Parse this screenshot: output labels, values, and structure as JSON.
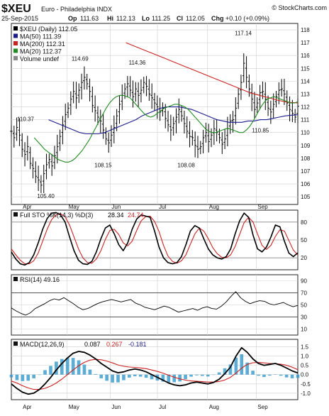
{
  "header": {
    "symbol": "$XEU",
    "name": "Euro - Philadelphia INDX",
    "watermark": "© StockCharts.com",
    "date": "25-Sep-2015",
    "quote": {
      "op_label": "Op",
      "op": "111.63",
      "hi_label": "Hi",
      "hi": "112.13",
      "lo_label": "Lo",
      "lo": "111.25",
      "cl_label": "Cl",
      "cl": "112.05",
      "chg_label": "Chg",
      "chg": "+0.10 (+0.09%)"
    }
  },
  "colors": {
    "price_bar": "#000000",
    "ma50": "#1a1a8c",
    "ma200": "#cc2222",
    "ma20": "#228b22",
    "grid": "#cfcfcf",
    "sto_k": "#000000",
    "sto_d": "#cc2222",
    "rsi": "#000000",
    "macd": "#000000",
    "macd_signal": "#cc2222",
    "macd_hist": "#3399cc",
    "label_neg": "#1a1a8c",
    "label_pos": "#008800"
  },
  "chart_data": {
    "type": "line",
    "months": [
      "Apr",
      "May",
      "Jun",
      "Jul",
      "Aug",
      "Sep"
    ],
    "price_panel": {
      "legend": [
        {
          "label": "$XEU (Daily) 112.05",
          "color": "#000000"
        },
        {
          "label": "MA(50) 111.39",
          "color": "#1a1a8c"
        },
        {
          "label": "MA(200) 112.31",
          "color": "#cc2222"
        },
        {
          "label": "MA(20) 112.37",
          "color": "#228b22"
        },
        {
          "label": "Volume undef",
          "color": "#888888"
        }
      ],
      "ylim": [
        104.4,
        118.5
      ],
      "yticks": [
        105,
        106,
        107,
        108,
        109,
        110,
        111,
        112,
        113,
        114,
        115,
        116,
        117,
        118
      ],
      "close": [
        110.1,
        109.6,
        110.4,
        109.8,
        108.7,
        108.3,
        108.9,
        107.6,
        107.2,
        106.6,
        106.3,
        105.9,
        106.8,
        107.5,
        107.9,
        107.4,
        108.2,
        108.9,
        109.7,
        110.6,
        111.4,
        111.9,
        112.6,
        113.2,
        112.7,
        113.3,
        113.9,
        114.3,
        113.8,
        113.2,
        112.1,
        111.7,
        111.2,
        110.9,
        110.2,
        109.5,
        109.2,
        109.8,
        110.4,
        111.3,
        112.2,
        112.9,
        113.4,
        113.8,
        113.3,
        112.8,
        113.4,
        112.9,
        113.3,
        113.9,
        113.6,
        113.0,
        112.7,
        112.3,
        112.0,
        111.6,
        111.9,
        111.1,
        110.6,
        110.2,
        110.7,
        111.2,
        111.8,
        111.3,
        110.7,
        110.1,
        109.7,
        109.6,
        109.0,
        108.7,
        108.9,
        109.6,
        110.0,
        109.3,
        109.8,
        110.3,
        110.0,
        109.6,
        109.1,
        109.5,
        110.3,
        110.9,
        111.0,
        111.9,
        113.0,
        113.9,
        115.4,
        114.3,
        113.4,
        112.6,
        111.8,
        112.3,
        113.1,
        113.2,
        112.6,
        111.9,
        111.6,
        112.2,
        112.8,
        113.3,
        113.4,
        113.0,
        112.3,
        111.8,
        111.5,
        111.2,
        112.05
      ],
      "ma20": [
        109.6,
        109.3,
        109.0,
        108.7,
        108.5,
        108.3,
        108.1,
        107.9,
        107.8,
        107.7,
        107.7,
        107.8,
        108.0,
        108.3,
        108.6,
        109.0,
        109.4,
        109.9,
        110.4,
        110.9,
        111.4,
        111.9,
        112.3,
        112.6,
        112.8,
        112.9,
        112.9,
        112.8,
        112.7,
        112.4,
        112.1,
        111.8,
        111.5,
        111.3,
        111.2,
        111.3,
        111.5,
        111.7,
        111.9,
        112.0,
        112.1,
        112.2,
        112.2,
        112.1,
        112.0,
        111.8,
        111.5,
        111.2,
        110.9,
        110.6,
        110.3,
        110.1,
        110.0,
        110.0,
        110.1,
        110.2,
        110.3,
        110.3,
        110.2,
        110.1,
        110.0,
        110.0,
        110.2,
        110.5,
        110.9,
        111.4,
        111.9,
        112.3,
        112.6,
        112.7,
        112.8,
        112.7,
        112.6,
        112.5,
        112.4,
        112.3,
        112.3,
        112.4
      ],
      "ma50": [
        111.0,
        110.8,
        110.6,
        110.4,
        110.2,
        110.0,
        109.9,
        109.9,
        109.9,
        110.0,
        110.2,
        110.4,
        110.6,
        110.8,
        111.0,
        111.3,
        111.5,
        111.7,
        111.9,
        112.0,
        112.0,
        112.0,
        111.9,
        111.8,
        111.6,
        111.4,
        111.2,
        111.0,
        110.9,
        110.8,
        110.8,
        110.8,
        110.9,
        110.9,
        111.0,
        111.0,
        111.1,
        111.2,
        111.3,
        111.35,
        111.39
      ],
      "ma200": [
        117.0,
        116.7,
        116.4,
        116.1,
        115.8,
        115.5,
        115.2,
        114.9,
        114.6,
        114.3,
        114.0,
        113.7,
        113.4,
        113.1,
        112.9,
        112.7,
        112.5,
        112.35,
        112.31
      ]
    },
    "sto_panel": {
      "legend": [
        {
          "label": "Full STO %K(14,3) %D(3)",
          "color": "#000000"
        },
        {
          "label": "28.34",
          "color": "#000000"
        },
        {
          "label": "24.74",
          "color": "#cc2222"
        }
      ],
      "ylim": [
        0,
        100
      ],
      "yticks": [
        20,
        50,
        80
      ],
      "k": [
        30,
        18,
        10,
        8,
        12,
        25,
        45,
        68,
        86,
        95,
        96,
        92,
        80,
        55,
        32,
        16,
        10,
        9,
        14,
        30,
        52,
        70,
        75,
        60,
        42,
        32,
        45,
        68,
        85,
        92,
        90,
        88,
        65,
        38,
        20,
        12,
        10,
        12,
        22,
        42,
        65,
        74,
        70,
        52,
        35,
        25,
        20,
        18,
        22,
        35,
        60,
        82,
        95,
        88,
        58,
        35,
        30,
        38,
        55,
        75,
        72,
        48,
        28,
        22,
        28.34
      ],
      "d": [
        35,
        25,
        16,
        10,
        10,
        15,
        28,
        48,
        68,
        84,
        92,
        94,
        89,
        75,
        55,
        35,
        20,
        12,
        11,
        18,
        32,
        51,
        66,
        68,
        59,
        45,
        40,
        48,
        66,
        82,
        89,
        90,
        81,
        64,
        41,
        23,
        14,
        11,
        15,
        25,
        43,
        60,
        70,
        65,
        52,
        37,
        27,
        21,
        20,
        25,
        39,
        59,
        79,
        88,
        80,
        60,
        41,
        34,
        41,
        56,
        67,
        65,
        49,
        33,
        24.74
      ]
    },
    "rsi_panel": {
      "legend": [
        {
          "label": "RSI(14) 49.16",
          "color": "#000000"
        }
      ],
      "ylim": [
        0,
        100
      ],
      "yticks": [
        10,
        30,
        50,
        70,
        90
      ],
      "values": [
        45,
        40,
        36,
        33,
        37,
        44,
        48,
        52,
        57,
        60,
        58,
        62,
        57,
        52,
        46,
        42,
        44,
        48,
        52,
        55,
        57,
        59,
        57,
        55,
        57,
        59,
        53,
        50,
        46,
        44,
        42,
        45,
        48,
        46,
        42,
        38,
        40,
        42,
        44,
        41,
        45,
        47,
        44,
        43,
        48,
        55,
        64,
        72,
        62,
        56,
        52,
        55,
        57,
        56,
        52,
        50,
        52,
        54,
        50,
        47,
        49.16
      ]
    },
    "macd_panel": {
      "legend": [
        {
          "label": "MACD(12,26,9)",
          "color": "#000000"
        },
        {
          "label": "0.087",
          "color": "#000000"
        },
        {
          "label": "0.267",
          "color": "#cc2222"
        },
        {
          "label": "-0.181",
          "color": "#3399cc"
        }
      ],
      "ylim": [
        -1.35,
        1.9
      ],
      "yticks": [
        -1.0,
        -0.5,
        0.0,
        0.5,
        1.0,
        1.5
      ],
      "macd": [
        -0.5,
        -0.75,
        -0.95,
        -1.05,
        -1.0,
        -0.8,
        -0.5,
        -0.15,
        0.25,
        0.6,
        0.9,
        1.15,
        1.25,
        1.2,
        1.05,
        0.85,
        0.6,
        0.4,
        0.2,
        0.1,
        0.15,
        0.25,
        0.3,
        0.25,
        0.15,
        0.0,
        -0.15,
        -0.3,
        -0.45,
        -0.55,
        -0.6,
        -0.55,
        -0.45,
        -0.4,
        -0.45,
        -0.5,
        -0.42,
        -0.25,
        0.05,
        0.4,
        1.0,
        1.45,
        1.2,
        0.85,
        0.6,
        0.5,
        0.55,
        0.6,
        0.5,
        0.35,
        0.2,
        0.087
      ],
      "signal": [
        -0.35,
        -0.45,
        -0.6,
        -0.72,
        -0.8,
        -0.8,
        -0.74,
        -0.62,
        -0.45,
        -0.24,
        0.0,
        0.25,
        0.48,
        0.66,
        0.78,
        0.82,
        0.8,
        0.73,
        0.63,
        0.52,
        0.45,
        0.41,
        0.39,
        0.36,
        0.32,
        0.25,
        0.17,
        0.08,
        -0.03,
        -0.14,
        -0.23,
        -0.3,
        -0.34,
        -0.36,
        -0.38,
        -0.4,
        -0.4,
        -0.37,
        -0.29,
        -0.15,
        0.08,
        0.35,
        0.55,
        0.64,
        0.66,
        0.63,
        0.6,
        0.59,
        0.56,
        0.5,
        0.4,
        0.267
      ]
    }
  }
}
